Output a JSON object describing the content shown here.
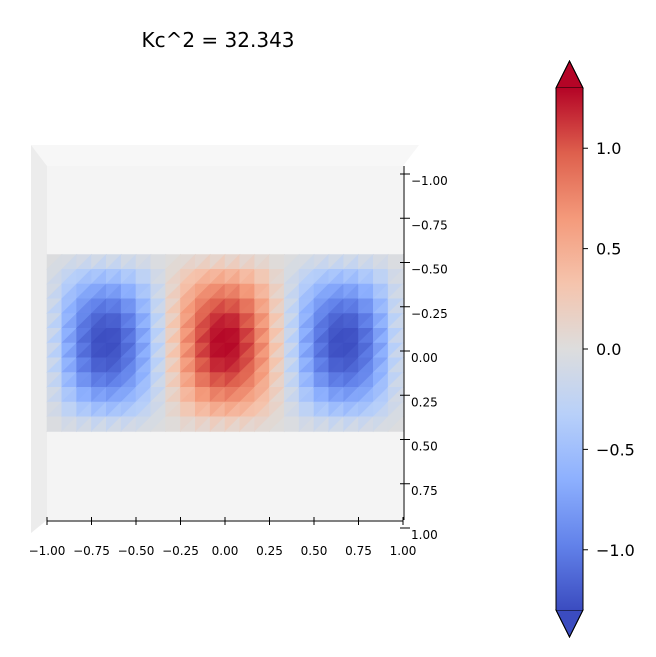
{
  "chart_data": {
    "type": "heatmap",
    "title": "Kc^2 = 32.343",
    "xlim": [
      -1.0,
      1.0
    ],
    "ylim": [
      -1.0,
      1.0
    ],
    "x_ticks": [
      -1.0,
      -0.75,
      -0.5,
      -0.25,
      0.0,
      0.25,
      0.5,
      0.75,
      1.0
    ],
    "x_tick_labels": [
      "−1.00",
      "−0.75",
      "−0.50",
      "−0.25",
      "0.00",
      "0.25",
      "0.50",
      "0.75",
      "1.00"
    ],
    "y_ticks": [
      -1.0,
      -0.75,
      -0.5,
      -0.25,
      0.0,
      0.25,
      0.5,
      0.75,
      1.0
    ],
    "y_tick_labels": [
      "−1.00",
      "−0.75",
      "−0.50",
      "−0.25",
      "0.00",
      "0.25",
      "0.50",
      "0.75",
      "1.00"
    ],
    "field": {
      "x_range": [
        -1.0,
        1.0
      ],
      "y_range": [
        -0.5,
        0.5
      ],
      "extrema": [
        {
          "x": -0.67,
          "y": 0.0,
          "value": -1.3
        },
        {
          "x": 0.0,
          "y": 0.0,
          "value": 1.3
        },
        {
          "x": 0.67,
          "y": 0.0,
          "value": -1.3
        }
      ]
    },
    "colorbar": {
      "colormap": "coolwarm",
      "vmin": -1.3,
      "vmax": 1.3,
      "extend": "both",
      "ticks": [
        -1.0,
        -0.5,
        0.0,
        0.5,
        1.0
      ],
      "tick_labels": [
        "−1.0",
        "−0.5",
        "0.0",
        "0.5",
        "1.0"
      ]
    },
    "colors": {
      "pane": "#f4f4f4",
      "pane_side": "#ececec",
      "cold": "#3b4cc0",
      "neutral": "#dddddd",
      "warm": "#b40426"
    }
  }
}
